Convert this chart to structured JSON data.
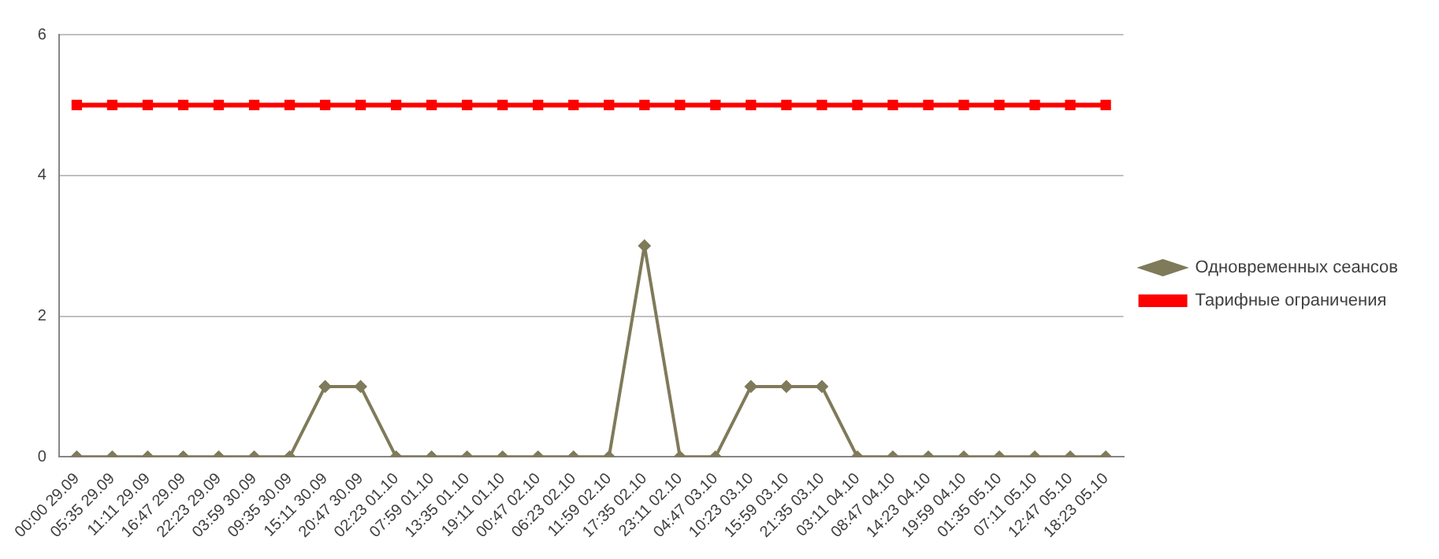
{
  "chart_data": {
    "type": "line",
    "categories": [
      "00:00 29.09",
      "05:35 29.09",
      "11:11 29.09",
      "16:47 29.09",
      "22:23 29.09",
      "03:59 30.09",
      "09:35 30.09",
      "15:11 30.09",
      "20:47 30.09",
      "02:23 01.10",
      "07:59 01.10",
      "13:35 01.10",
      "19:11 01.10",
      "00:47 02.10",
      "06:23 02.10",
      "11:59 02.10",
      "17:35 02.10",
      "23:11 02.10",
      "04:47 03.10",
      "10:23 03.10",
      "15:59 03.10",
      "21:35 03.10",
      "03:11 04.10",
      "08:47 04.10",
      "14:23 04.10",
      "19:59 04.10",
      "01:35 05.10",
      "07:11 05.10",
      "12:47 05.10",
      "18:23 05.10"
    ],
    "series": [
      {
        "name": "Одновременных сеансов",
        "color": "#7f7a5a",
        "marker": "diamond",
        "values": [
          0,
          0,
          0,
          0,
          0,
          0,
          0,
          1,
          1,
          0,
          0,
          0,
          0,
          0,
          0,
          0,
          3,
          0,
          0,
          1,
          1,
          1,
          0,
          0,
          0,
          0,
          0,
          0,
          0,
          0
        ]
      },
      {
        "name": "Тарифные ограничения",
        "color": "#ff0000",
        "marker": "square",
        "values": [
          5,
          5,
          5,
          5,
          5,
          5,
          5,
          5,
          5,
          5,
          5,
          5,
          5,
          5,
          5,
          5,
          5,
          5,
          5,
          5,
          5,
          5,
          5,
          5,
          5,
          5,
          5,
          5,
          5,
          5
        ]
      }
    ],
    "ylim": [
      0,
      6
    ],
    "yticks": [
      0,
      2,
      4,
      6
    ],
    "grid": "y",
    "legend": "right"
  }
}
